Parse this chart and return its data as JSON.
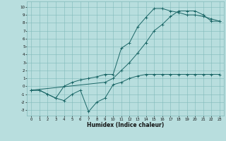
{
  "xlabel": "Humidex (Indice chaleur)",
  "xlim": [
    -0.5,
    23.5
  ],
  "ylim": [
    -3.7,
    10.7
  ],
  "xticks": [
    0,
    1,
    2,
    3,
    4,
    5,
    6,
    7,
    8,
    9,
    10,
    11,
    12,
    13,
    14,
    15,
    16,
    17,
    18,
    19,
    20,
    21,
    22,
    23
  ],
  "yticks": [
    -3,
    -2,
    -1,
    0,
    1,
    2,
    3,
    4,
    5,
    6,
    7,
    8,
    9,
    10
  ],
  "bg_color": "#b8dede",
  "grid_color": "#80baba",
  "line_color": "#1a6666",
  "curve1_x": [
    0,
    1,
    2,
    3,
    4,
    5,
    6,
    7,
    8,
    9,
    10,
    11,
    12,
    13,
    14,
    15,
    16,
    17,
    18,
    19,
    20,
    21,
    22,
    23
  ],
  "curve1_y": [
    -0.5,
    -0.5,
    -1.0,
    -1.5,
    -1.8,
    -1.0,
    -0.5,
    -3.2,
    -2.0,
    -1.5,
    0.2,
    0.5,
    1.0,
    1.3,
    1.5,
    1.5,
    1.5,
    1.5,
    1.5,
    1.5,
    1.5,
    1.5,
    1.5,
    1.5
  ],
  "curve2_x": [
    0,
    1,
    2,
    3,
    4,
    5,
    6,
    7,
    8,
    9,
    10,
    11,
    12,
    13,
    14,
    15,
    16,
    17,
    18,
    19,
    20,
    21,
    22,
    23
  ],
  "curve2_y": [
    -0.5,
    -0.5,
    -1.0,
    -1.5,
    0.0,
    0.5,
    0.8,
    1.0,
    1.2,
    1.5,
    1.5,
    4.8,
    5.5,
    7.5,
    8.7,
    9.8,
    9.8,
    9.5,
    9.3,
    9.0,
    9.0,
    8.8,
    8.5,
    8.2
  ],
  "curve3_x": [
    0,
    9,
    10,
    11,
    12,
    13,
    14,
    15,
    16,
    17,
    18,
    19,
    20,
    21,
    22,
    23
  ],
  "curve3_y": [
    -0.5,
    0.5,
    1.0,
    2.0,
    3.0,
    4.2,
    5.5,
    7.0,
    7.8,
    8.8,
    9.5,
    9.5,
    9.5,
    9.0,
    8.2,
    8.2
  ]
}
